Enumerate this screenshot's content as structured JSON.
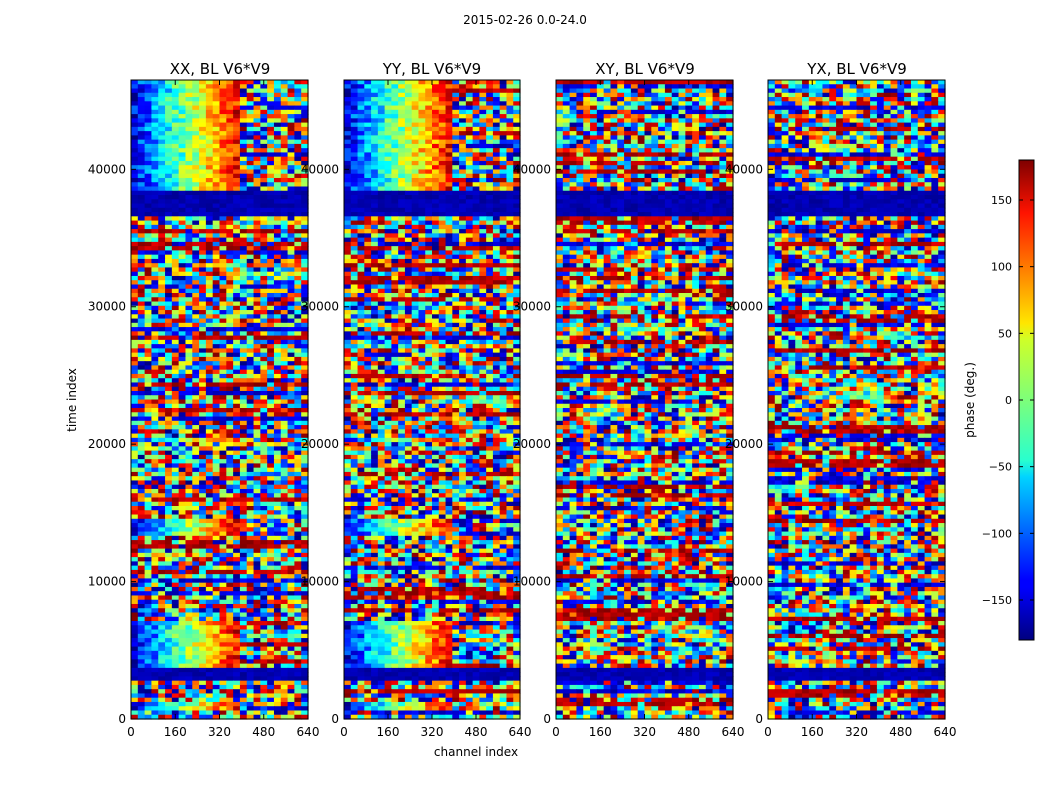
{
  "figure": {
    "suptitle": "2015-02-26 0.0-24.0"
  },
  "chart_data": {
    "type": "heatmap",
    "suptitle": "2015-02-26 0.0-24.0",
    "xlabel": "channel index",
    "ylabel": "time index",
    "xlim": [
      0,
      640
    ],
    "ylim": [
      0,
      46500
    ],
    "x_ticks": [
      0,
      160,
      320,
      480,
      640
    ],
    "y_ticks": [
      0,
      10000,
      20000,
      30000,
      40000
    ],
    "panels": [
      {
        "title": "XX, BL V6*V9",
        "pol": "XX"
      },
      {
        "title": "YY, BL V6*V9",
        "pol": "YY"
      },
      {
        "title": "XY, BL V6*V9",
        "pol": "XY"
      },
      {
        "title": "YX, BL V6*V9",
        "pol": "YX"
      }
    ],
    "colorbar": {
      "label": "phase (deg.)",
      "range": [
        -180,
        180
      ],
      "ticks": [
        150,
        100,
        50,
        0,
        -50,
        -100,
        -150
      ],
      "tick_labels": [
        "150",
        "100",
        "50",
        "0",
        "−50",
        "−100",
        "−150"
      ],
      "colormap": "jet"
    },
    "features": {
      "dark_blue_bands": [
        [
          2800,
          3600
        ],
        [
          36700,
          38400
        ]
      ],
      "bright_line": [
        37000,
        37300
      ],
      "coherent_regions_parallel_hands": [
        [
          600,
          1300
        ],
        [
          3800,
          7000
        ],
        [
          13300,
          14500
        ],
        [
          20000,
          20600
        ],
        [
          37000,
          46500
        ]
      ]
    }
  }
}
